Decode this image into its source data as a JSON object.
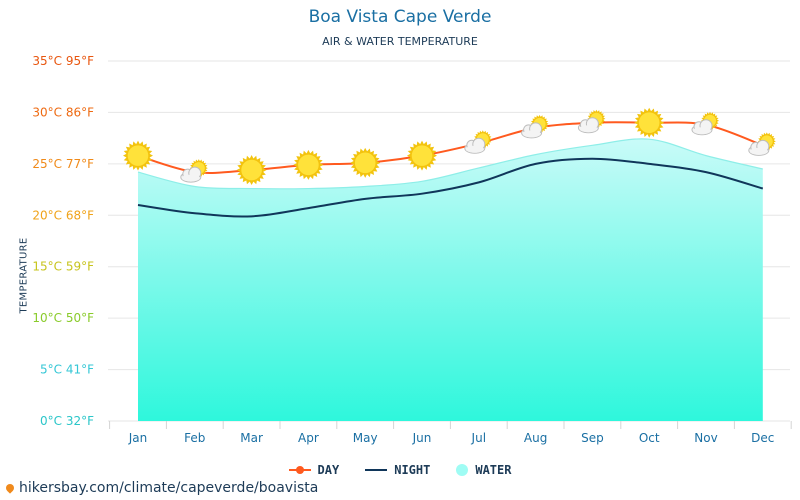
{
  "title": "Boa Vista Cape Verde",
  "subtitle": "AIR & WATER TEMPERATURE",
  "footer_url": "hikersbay.com/climate/capeverde/boavista",
  "colors": {
    "day": "#ff5a1f",
    "night": "#10365a",
    "water_top": "#c9fbf8",
    "water_bottom": "#2ef7dc",
    "title": "#1a6fa3"
  },
  "chart_data": {
    "type": "line",
    "title": "Boa Vista Cape Verde",
    "subtitle": "AIR & WATER TEMPERATURE",
    "xlabel": "",
    "ylabel": "TEMPERATURE",
    "ylim": [
      0,
      35
    ],
    "categories": [
      "Jan",
      "Feb",
      "Mar",
      "Apr",
      "May",
      "Jun",
      "Jul",
      "Aug",
      "Sep",
      "Oct",
      "Nov",
      "Dec"
    ],
    "y_ticks": [
      {
        "value": 0,
        "label": "0°C 32°F",
        "color": "#2bc6c9"
      },
      {
        "value": 5,
        "label": "5°C 41°F",
        "color": "#35c7d6"
      },
      {
        "value": 10,
        "label": "10°C 50°F",
        "color": "#8acb2b"
      },
      {
        "value": 15,
        "label": "15°C 59°F",
        "color": "#c7c41d"
      },
      {
        "value": 20,
        "label": "20°C 68°F",
        "color": "#f0a319"
      },
      {
        "value": 25,
        "label": "25°C 77°F",
        "color": "#f08a19"
      },
      {
        "value": 30,
        "label": "30°C 86°F",
        "color": "#ee6a12"
      },
      {
        "value": 35,
        "label": "35°C 95°F",
        "color": "#e8560f"
      }
    ],
    "series": [
      {
        "name": "DAY",
        "kind": "line",
        "values": [
          25.8,
          24.2,
          24.4,
          24.9,
          25.1,
          25.8,
          27.0,
          28.5,
          29.0,
          29.0,
          28.8,
          26.8
        ]
      },
      {
        "name": "NIGHT",
        "kind": "line",
        "values": [
          21.0,
          20.2,
          19.9,
          20.7,
          21.6,
          22.1,
          23.2,
          25.0,
          25.5,
          25.0,
          24.2,
          22.6
        ]
      },
      {
        "name": "WATER",
        "kind": "area",
        "values": [
          24.2,
          22.8,
          22.6,
          22.6,
          22.8,
          23.3,
          24.6,
          25.9,
          26.8,
          27.4,
          25.8,
          24.5
        ]
      }
    ],
    "day_icons": [
      "sun",
      "partly-cloudy",
      "sun",
      "sun",
      "sun",
      "sun",
      "partly-cloudy",
      "partly-cloudy",
      "partly-cloudy",
      "sun",
      "partly-cloudy",
      "partly-cloudy"
    ],
    "legend": {
      "placement": "bottom-center",
      "items": [
        "DAY",
        "NIGHT",
        "WATER"
      ]
    },
    "grid": true
  }
}
